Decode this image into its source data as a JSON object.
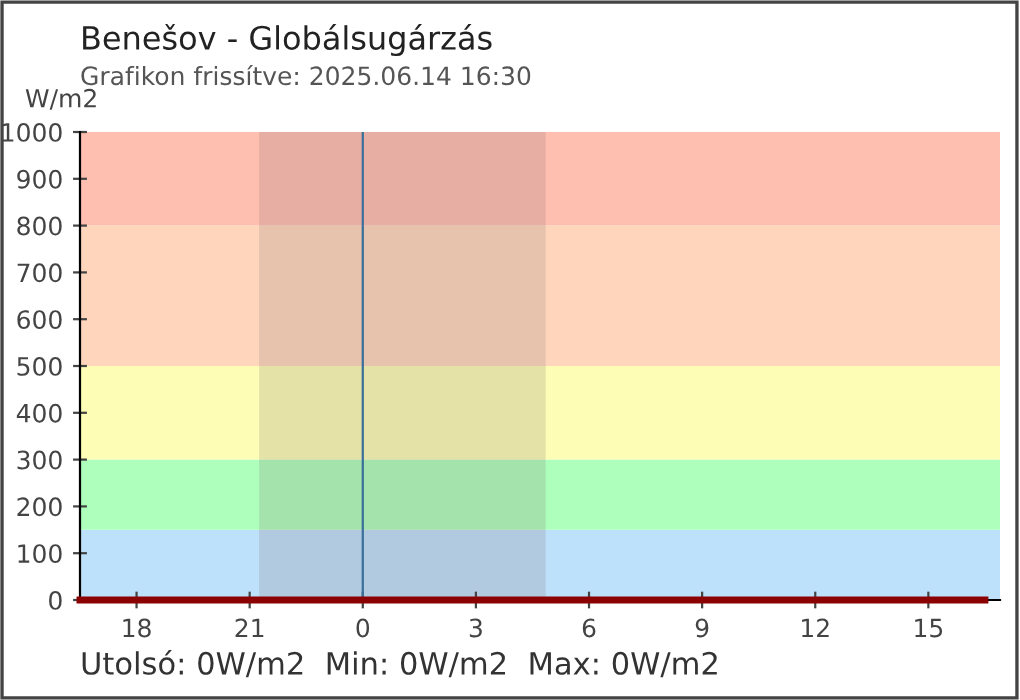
{
  "chart_data": {
    "type": "line",
    "title": "Benešov - Globálsugárzás",
    "subtitle": "Grafikon frissítve: 2025.06.14 16:30",
    "ylabel": "W/m2",
    "x": [
      "2025-06-13T16:30",
      "2025-06-14T16:30"
    ],
    "series": [
      {
        "color": "#8b0000",
        "values": [
          0,
          0
        ]
      }
    ],
    "xlim": [
      "2025-06-13T16:30",
      "2025-06-14T16:54"
    ],
    "ylim": [
      0,
      1000
    ],
    "xticks": [
      {
        "value": "2025-06-13T18:00",
        "label": "18"
      },
      {
        "value": "2025-06-13T21:00",
        "label": "21"
      },
      {
        "value": "2025-06-14T00:00",
        "label": "0"
      },
      {
        "value": "2025-06-14T03:00",
        "label": "3"
      },
      {
        "value": "2025-06-14T06:00",
        "label": "6"
      },
      {
        "value": "2025-06-14T09:00",
        "label": "9"
      },
      {
        "value": "2025-06-14T12:00",
        "label": "12"
      },
      {
        "value": "2025-06-14T15:00",
        "label": "15"
      }
    ],
    "yticks": [
      0,
      100,
      200,
      300,
      400,
      500,
      600,
      700,
      800,
      900,
      1000
    ],
    "bands": [
      {
        "axis": "y",
        "from": 0,
        "to": 150,
        "color": "#bde0fb"
      },
      {
        "axis": "y",
        "from": 150,
        "to": 300,
        "color": "#aeffbb"
      },
      {
        "axis": "y",
        "from": 300,
        "to": 500,
        "color": "#fdfdb5"
      },
      {
        "axis": "y",
        "from": 500,
        "to": 800,
        "color": "#ffd6bb"
      },
      {
        "axis": "y",
        "from": 800,
        "to": 1000,
        "color": "#ffbfb0"
      },
      {
        "axis": "x",
        "from": "2025-06-13T21:15",
        "to": "2025-06-14T04:51",
        "color": "#7a6a6a"
      }
    ],
    "ref_lines": [
      {
        "axis": "x",
        "value": "2025-06-14T00:00",
        "color": "#3a6f9a"
      }
    ],
    "annotations": [
      "Utolsó: 0W/m2  Min: 0W/m2  Max: 0W/m2"
    ],
    "grid": false,
    "legend": false
  }
}
